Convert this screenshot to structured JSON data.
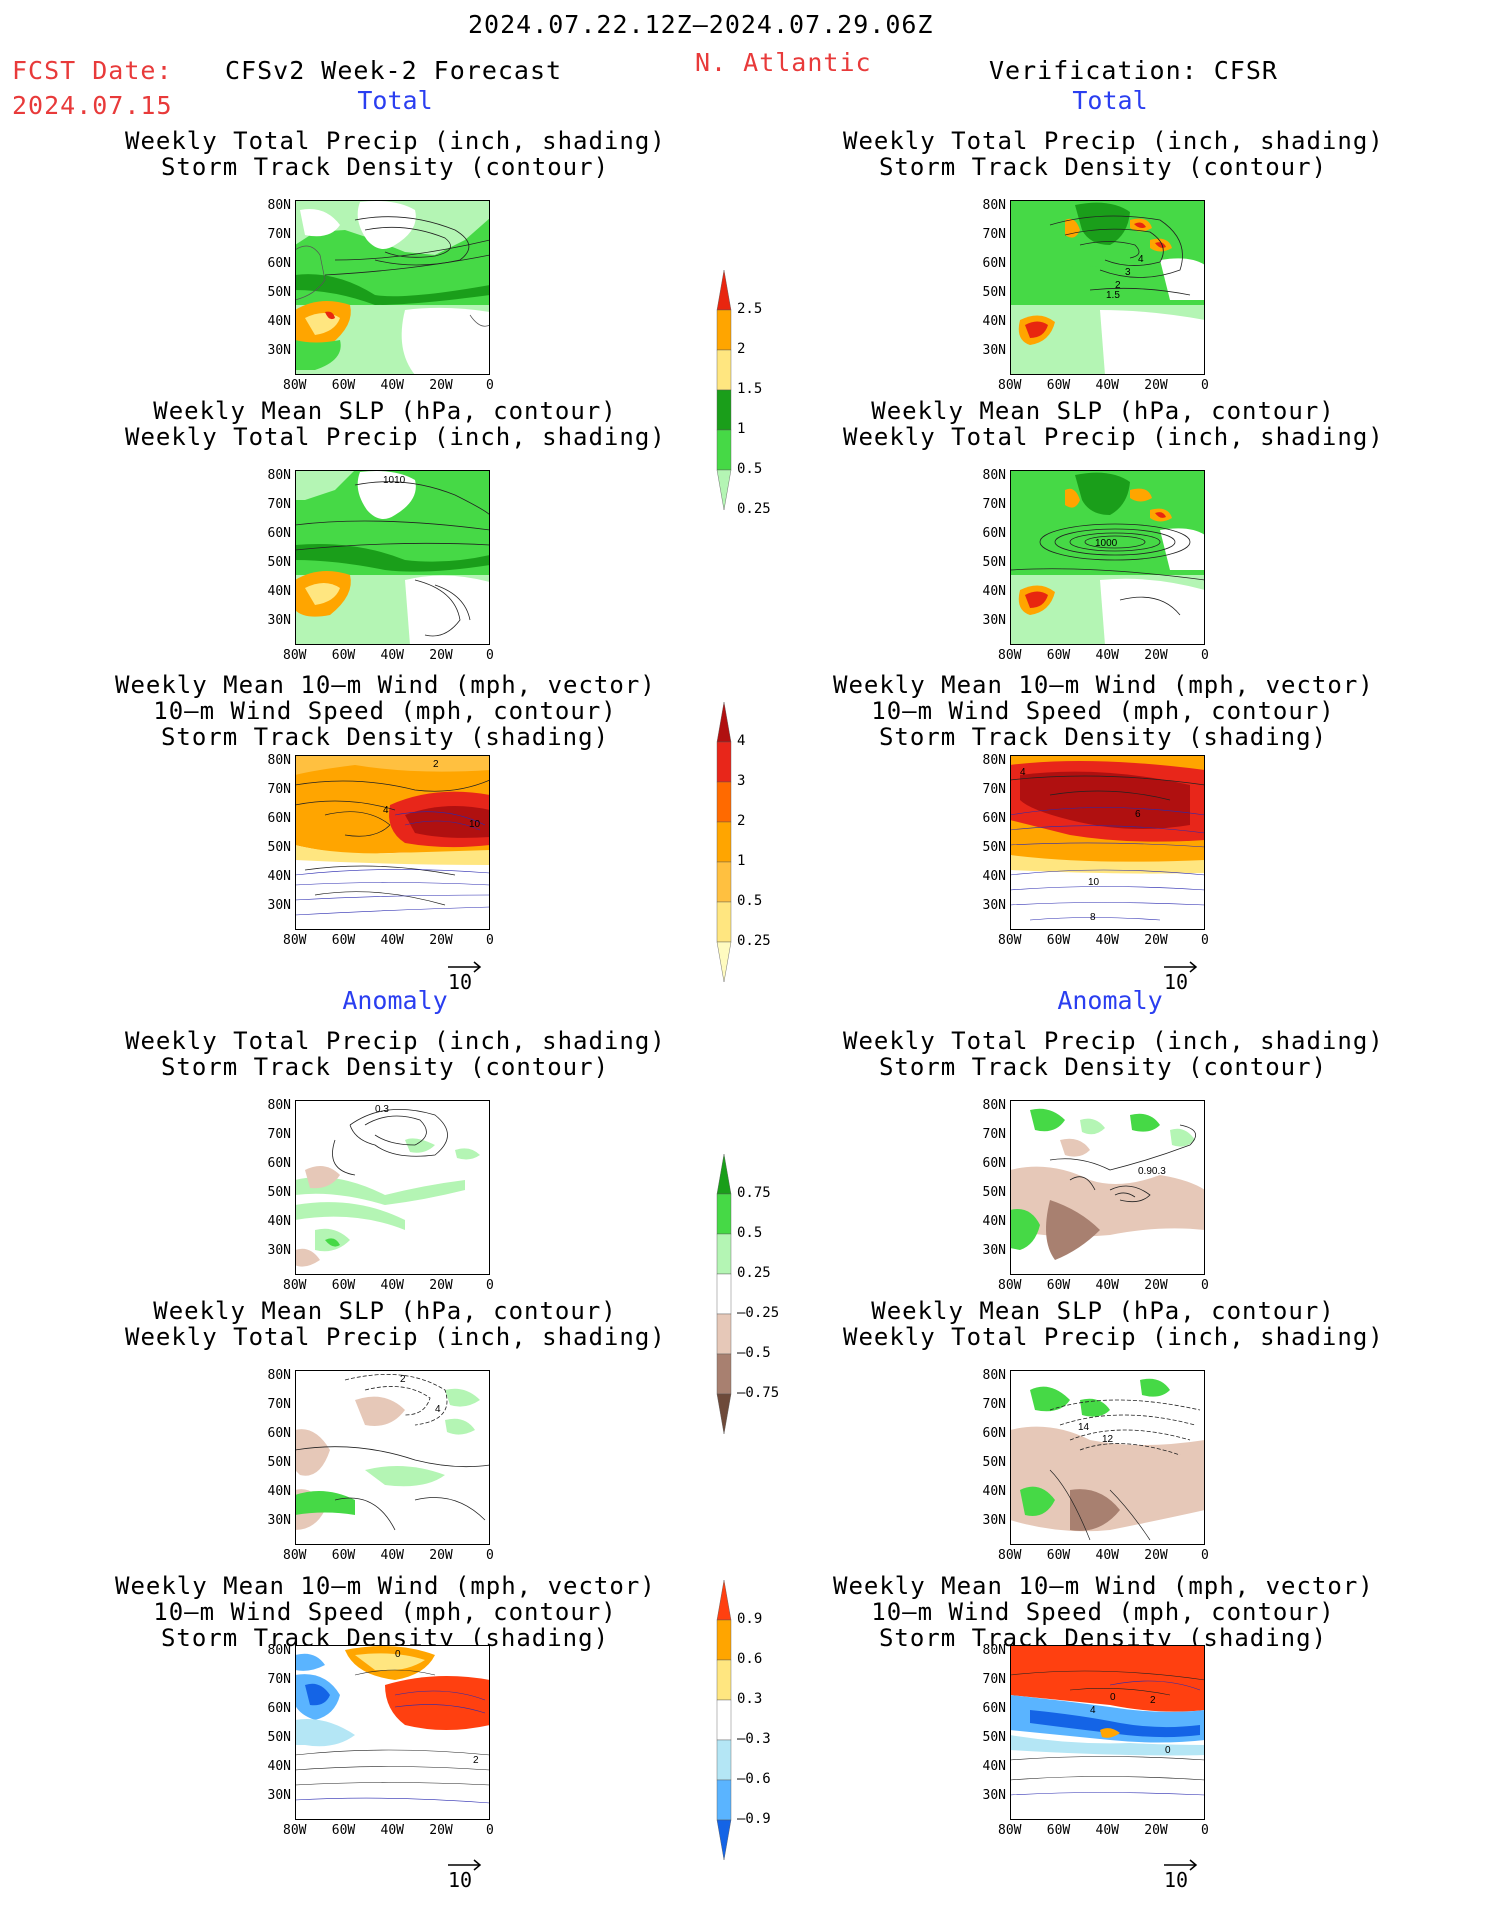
{
  "header": {
    "date_range": "2024.07.22.12Z–2024.07.29.06Z",
    "fcst_label": "FCST Date:",
    "fcst_date": "2024.07.15",
    "model": "CFSv2 Week-2 Forecast",
    "region": "N. Atlantic",
    "verification": "Verification: CFSR"
  },
  "sections": {
    "total": "Total",
    "anomaly": "Anomaly"
  },
  "panel_titles": {
    "precip_storm": "Weekly Total Precip (inch, shading)\nStorm Track Density (contour)",
    "slp_precip": "Weekly Mean SLP (hPa, contour)\nWeekly Total Precip (inch, shading)",
    "wind_storm": "Weekly Mean 10–m Wind (mph, vector)\n10–m Wind Speed (mph, contour)\nStorm Track Density (shading)"
  },
  "axes": {
    "lat": [
      "80N",
      "70N",
      "60N",
      "50N",
      "40N",
      "30N"
    ],
    "lon": [
      "80W",
      "60W",
      "40W",
      "20W",
      "0"
    ]
  },
  "vector_ref": "10",
  "colorbars": {
    "precip_total": {
      "labels": [
        "2.5",
        "2",
        "1.5",
        "1",
        "0.5",
        "0.25"
      ],
      "colors": [
        "#e8260f",
        "#ffa500",
        "#ffe680",
        "#1a9e1a",
        "#46d946",
        "#b4f5b4"
      ]
    },
    "storm_total": {
      "labels": [
        "4",
        "3",
        "2",
        "1",
        "0.5",
        "0.25"
      ],
      "colors": [
        "#b01010",
        "#e8261a",
        "#ff6a00",
        "#ffa500",
        "#ffc040",
        "#ffe680",
        "#fffbc0"
      ]
    },
    "precip_anom": {
      "labels": [
        "0.75",
        "0.5",
        "0.25",
        "–0.25",
        "–0.5",
        "–0.75"
      ],
      "colors": [
        "#1a9e1a",
        "#46d946",
        "#b4f5b4",
        "#ffffff",
        "#e6c8b8",
        "#a88070",
        "#6e4a3a"
      ]
    },
    "storm_anom": {
      "labels": [
        "0.9",
        "0.6",
        "0.3",
        "–0.3",
        "–0.6",
        "–0.9"
      ],
      "colors": [
        "#ff4010",
        "#ffa500",
        "#ffe680",
        "#ffffff",
        "#b4e6f5",
        "#5ab4ff",
        "#1464e6"
      ]
    }
  },
  "contour_labels": {
    "fc_slp_total": "1010",
    "ver_precip_total": [
      "4",
      "3",
      "2",
      "1.5"
    ],
    "ver_slp_total": "1000",
    "fc_wind_total": [
      "4",
      "2",
      "10"
    ],
    "ver_wind_total": [
      "4",
      "6",
      "10",
      "8"
    ],
    "fc_precip_anom": "0.3",
    "ver_precip_anom": "0.90.3",
    "fc_slp_anom": [
      "2",
      "4"
    ],
    "ver_slp_anom": [
      "14",
      "12"
    ],
    "fc_wind_anom": [
      "0",
      "2"
    ],
    "ver_wind_anom": [
      "0",
      "4",
      "2",
      "0"
    ]
  }
}
